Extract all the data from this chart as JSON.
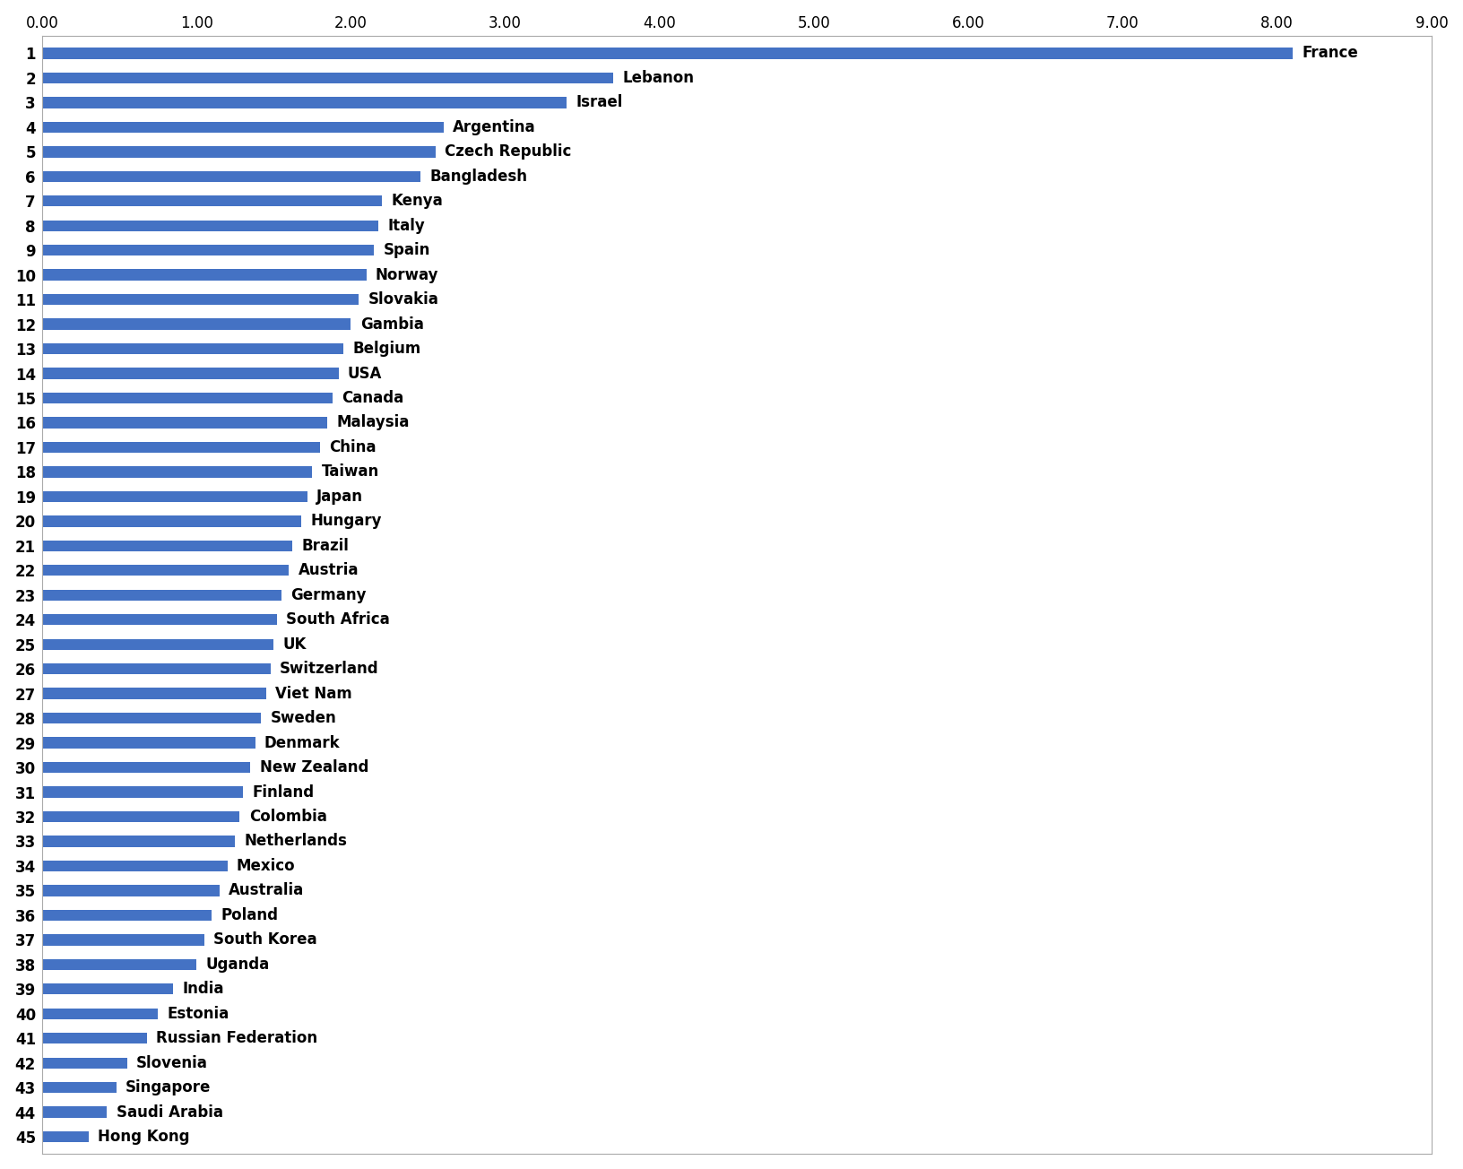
{
  "countries": [
    "France",
    "Lebanon",
    "Israel",
    "Argentina",
    "Czech Republic",
    "Bangladesh",
    "Kenya",
    "Italy",
    "Spain",
    "Norway",
    "Slovakia",
    "Gambia",
    "Belgium",
    "USA",
    "Canada",
    "Malaysia",
    "China",
    "Taiwan",
    "Japan",
    "Hungary",
    "Brazil",
    "Austria",
    "Germany",
    "South Africa",
    "UK",
    "Switzerland",
    "Viet Nam",
    "Sweden",
    "Denmark",
    "New Zealand",
    "Finland",
    "Colombia",
    "Netherlands",
    "Mexico",
    "Australia",
    "Poland",
    "South Korea",
    "Uganda",
    "India",
    "Estonia",
    "Russian Federation",
    "Slovenia",
    "Singapore",
    "Saudi Arabia",
    "Hong Kong"
  ],
  "values": [
    8.1,
    3.7,
    3.4,
    2.6,
    2.55,
    2.45,
    2.2,
    2.18,
    2.15,
    2.1,
    2.05,
    2.0,
    1.95,
    1.92,
    1.88,
    1.85,
    1.8,
    1.75,
    1.72,
    1.68,
    1.62,
    1.6,
    1.55,
    1.52,
    1.5,
    1.48,
    1.45,
    1.42,
    1.38,
    1.35,
    1.3,
    1.28,
    1.25,
    1.2,
    1.15,
    1.1,
    1.05,
    1.0,
    0.85,
    0.75,
    0.68,
    0.55,
    0.48,
    0.42,
    0.3
  ],
  "bar_color": "#4472C4",
  "label_fontsize": 12,
  "rank_fontsize": 12,
  "xlim": [
    0,
    9.0
  ],
  "xticks": [
    0.0,
    1.0,
    2.0,
    3.0,
    4.0,
    5.0,
    6.0,
    7.0,
    8.0,
    9.0
  ],
  "background_color": "#ffffff",
  "bar_height": 0.45,
  "border_color": "#aaaaaa"
}
